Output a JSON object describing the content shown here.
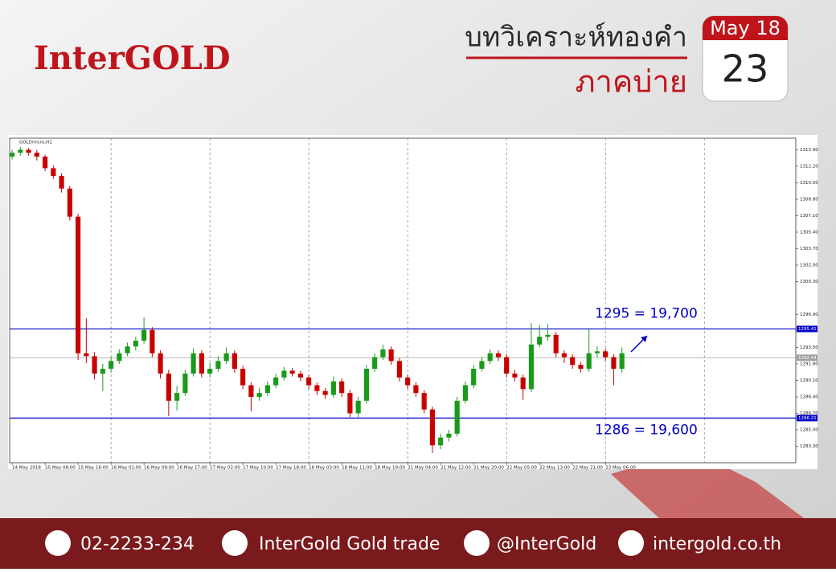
{
  "header": {
    "logo": "InterGOLD",
    "title": "บทวิเคราะห์ทองคำ",
    "subtitle": "ภาคบ่าย",
    "calendar": {
      "month": "May 18",
      "day": "23"
    }
  },
  "chart_data": {
    "type": "candlestick",
    "title": "GOLDmicro,H1",
    "up_color": "#1a9a1a",
    "down_color": "#c80000",
    "open": [
      1313.2,
      1313.6,
      1313.9,
      1313.6,
      1313.2,
      1312.0,
      1311.2,
      1309.9,
      1307.0,
      1292.9,
      1292.6,
      1290.8,
      1291.3,
      1292.1,
      1292.9,
      1293.6,
      1294.2,
      1295.3,
      1292.9,
      1290.8,
      1288.0,
      1288.8,
      1290.8,
      1292.9,
      1290.8,
      1291.3,
      1292.1,
      1292.9,
      1291.3,
      1289.6,
      1288.4,
      1288.8,
      1289.6,
      1290.4,
      1291.1,
      1290.8,
      1290.4,
      1289.6,
      1289.0,
      1288.6,
      1290.0,
      1288.8,
      1286.7,
      1288.0,
      1291.3,
      1292.5,
      1293.3,
      1292.1,
      1290.4,
      1289.6,
      1288.8,
      1287.1,
      1283.4,
      1284.2,
      1284.6,
      1288.0,
      1289.6,
      1291.3,
      1292.1,
      1292.9,
      1292.5,
      1290.8,
      1290.4,
      1289.2,
      1293.8,
      1294.6,
      1294.8,
      1292.9,
      1292.5,
      1291.7,
      1291.3,
      1292.9,
      1293.1,
      1292.5,
      1291.3
    ],
    "high": [
      1313.9,
      1314.2,
      1314.1,
      1313.9,
      1313.4,
      1312.3,
      1311.5,
      1310.2,
      1307.3,
      1296.5,
      1293.0,
      1291.8,
      1292.5,
      1293.3,
      1294.0,
      1294.6,
      1296.6,
      1295.6,
      1293.2,
      1291.2,
      1289.5,
      1291.2,
      1293.4,
      1293.2,
      1291.9,
      1292.6,
      1293.5,
      1293.2,
      1291.6,
      1289.9,
      1289.3,
      1290.0,
      1290.8,
      1291.5,
      1291.4,
      1291.1,
      1290.7,
      1289.9,
      1289.3,
      1290.5,
      1290.3,
      1289.1,
      1288.4,
      1291.7,
      1292.9,
      1293.8,
      1293.6,
      1292.4,
      1290.7,
      1289.9,
      1289.1,
      1287.4,
      1284.6,
      1285.0,
      1288.4,
      1290.0,
      1291.7,
      1292.5,
      1293.3,
      1293.2,
      1292.8,
      1291.2,
      1290.7,
      1296.0,
      1295.8,
      1295.9,
      1295.1,
      1293.2,
      1292.8,
      1292.0,
      1295.4,
      1293.6,
      1293.4,
      1292.8,
      1293.5
    ],
    "low": [
      1312.9,
      1313.3,
      1313.3,
      1312.8,
      1311.7,
      1310.9,
      1309.5,
      1306.6,
      1292.2,
      1291.9,
      1290.2,
      1289.0,
      1290.9,
      1291.8,
      1292.6,
      1293.2,
      1293.9,
      1292.5,
      1290.3,
      1286.4,
      1287.0,
      1288.5,
      1290.5,
      1290.4,
      1290.4,
      1291.0,
      1291.8,
      1290.9,
      1289.2,
      1286.9,
      1288.0,
      1288.5,
      1289.3,
      1290.1,
      1290.5,
      1290.0,
      1289.2,
      1288.6,
      1288.2,
      1288.3,
      1288.4,
      1286.3,
      1286.3,
      1287.7,
      1291.0,
      1292.2,
      1291.7,
      1290.0,
      1289.2,
      1288.4,
      1286.7,
      1282.6,
      1283.0,
      1283.8,
      1284.3,
      1287.7,
      1289.3,
      1291.0,
      1291.8,
      1292.1,
      1290.4,
      1290.0,
      1288.1,
      1288.9,
      1293.5,
      1294.2,
      1292.5,
      1291.9,
      1291.3,
      1290.9,
      1291.0,
      1292.5,
      1292.1,
      1289.6,
      1290.9
    ],
    "close": [
      1313.6,
      1313.9,
      1313.6,
      1313.2,
      1312.0,
      1311.2,
      1309.9,
      1307.0,
      1292.9,
      1292.6,
      1290.8,
      1291.3,
      1292.1,
      1292.9,
      1293.6,
      1294.2,
      1295.3,
      1292.9,
      1290.8,
      1288.0,
      1288.8,
      1290.8,
      1292.9,
      1290.8,
      1291.3,
      1292.1,
      1292.9,
      1291.3,
      1289.6,
      1288.4,
      1288.8,
      1289.6,
      1290.4,
      1291.1,
      1290.8,
      1290.4,
      1289.6,
      1289.0,
      1288.6,
      1290.0,
      1288.8,
      1286.7,
      1288.0,
      1291.3,
      1292.5,
      1293.3,
      1292.1,
      1290.4,
      1289.6,
      1288.8,
      1287.1,
      1283.4,
      1284.2,
      1284.6,
      1288.0,
      1289.6,
      1291.3,
      1292.1,
      1292.9,
      1292.5,
      1290.8,
      1290.4,
      1289.2,
      1293.8,
      1294.6,
      1294.8,
      1292.9,
      1292.5,
      1291.7,
      1291.3,
      1292.9,
      1293.1,
      1292.5,
      1291.3,
      1292.9
    ],
    "xlim": [
      -0.3,
      95.1
    ],
    "ylim": [
      1281.6,
      1315.1
    ],
    "xticks": [
      {
        "value": 0,
        "label": "14 May 2018"
      },
      {
        "value": 4,
        "label": "15 May 08:00"
      },
      {
        "value": 8,
        "label": "15 May 16:00"
      },
      {
        "value": 12,
        "label": "16 May 01:00"
      },
      {
        "value": 16,
        "label": "16 May 09:00"
      },
      {
        "value": 20,
        "label": "16 May 17:00"
      },
      {
        "value": 24,
        "label": "17 May 02:00"
      },
      {
        "value": 28,
        "label": "17 May 10:00"
      },
      {
        "value": 32,
        "label": "17 May 18:00"
      },
      {
        "value": 36,
        "label": "18 May 03:00"
      },
      {
        "value": 40,
        "label": "18 May 11:00"
      },
      {
        "value": 44,
        "label": "18 May 19:00"
      },
      {
        "value": 48,
        "label": "21 May 04:00"
      },
      {
        "value": 52,
        "label": "21 May 12:00"
      },
      {
        "value": 56,
        "label": "21 May 20:00"
      },
      {
        "value": 60,
        "label": "22 May 05:00"
      },
      {
        "value": 64,
        "label": "22 May 13:00"
      },
      {
        "value": 68,
        "label": "22 May 21:00"
      },
      {
        "value": 72,
        "label": "23 May 06:00"
      }
    ],
    "xgrid": [
      12,
      24,
      36,
      48,
      60,
      72,
      84
    ],
    "yticks": [
      {
        "value": 1313.9,
        "label": "1313.90"
      },
      {
        "value": 1312.2,
        "label": "1312.20"
      },
      {
        "value": 1310.5,
        "label": "1310.50"
      },
      {
        "value": 1308.8,
        "label": "1308.80"
      },
      {
        "value": 1307.1,
        "label": "1307.10"
      },
      {
        "value": 1305.4,
        "label": "1305.40"
      },
      {
        "value": 1303.7,
        "label": "1303.70"
      },
      {
        "value": 1302,
        "label": "1302.00"
      },
      {
        "value": 1300.3,
        "label": "1300.30"
      },
      {
        "value": 1296.9,
        "label": "1296.90"
      },
      {
        "value": 1293.5,
        "label": "1293.50"
      },
      {
        "value": 1291.8,
        "label": "1291.80"
      },
      {
        "value": 1290.1,
        "label": "1290.10"
      },
      {
        "value": 1288.4,
        "label": "1288.40"
      },
      {
        "value": 1286.7,
        "label": "1286.70"
      },
      {
        "value": 1285,
        "label": "1285.00"
      },
      {
        "value": 1283.3,
        "label": "1283.30"
      }
    ],
    "levels": [
      {
        "value": 1295.41,
        "color": "#0000c8",
        "note": "1295 = 19,700"
      },
      {
        "value": 1292.44,
        "color": "#a0a0a0"
      },
      {
        "value": 1286.21,
        "color": "#0000c8",
        "note": "1286 = 19,600"
      }
    ]
  },
  "footer": {
    "phone": "02-2233-234",
    "facebook": "InterGold Gold trade",
    "line": "@InterGold",
    "website": "intergold.co.th"
  }
}
